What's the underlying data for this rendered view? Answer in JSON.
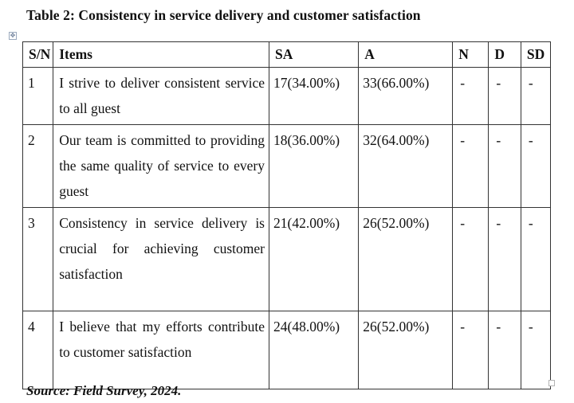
{
  "caption": "Table 2: Consistency in service delivery and customer satisfaction",
  "columns": [
    "S/N",
    "Items",
    "SA",
    "A",
    "N",
    "D",
    "SD"
  ],
  "rows": [
    {
      "sn": "1",
      "item": "I strive to deliver consistent service to all guest",
      "sa": "17(34.00%)",
      "a": "33(66.00%)",
      "n": "-",
      "d": "-",
      "sd": "-"
    },
    {
      "sn": "2",
      "item": "Our team is committed to providing the same quality of service to every guest",
      "sa": "18(36.00%)",
      "a": "32(64.00%)",
      "n": "-",
      "d": "-",
      "sd": "-"
    },
    {
      "sn": "3",
      "item": "Consistency in service delivery is crucial for achieving customer satisfaction",
      "sa": "21(42.00%)",
      "a": "26(52.00%)",
      "n": "-",
      "d": "-",
      "sd": "-"
    },
    {
      "sn": "4",
      "item": "I believe that my efforts contribute to customer satisfaction",
      "sa": "24(48.00%)",
      "a": "26(52.00%)",
      "n": "-",
      "d": "-",
      "sd": "-"
    }
  ],
  "source": "Source: Field Survey, 2024.",
  "icons": {
    "table_anchor": "move-handle-icon",
    "table_resize": "resize-handle-icon"
  }
}
